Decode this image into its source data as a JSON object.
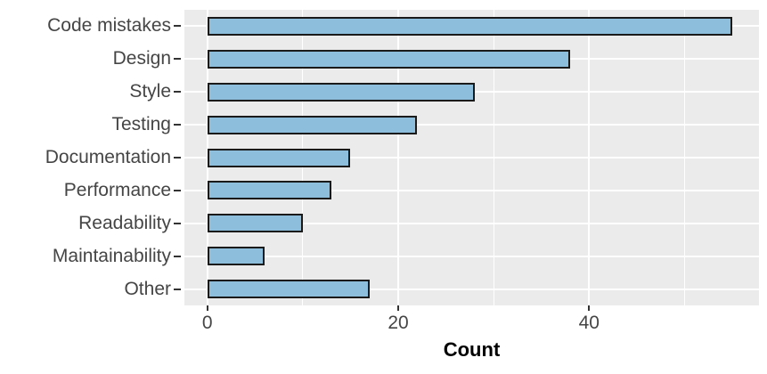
{
  "chart_data": {
    "type": "bar",
    "orientation": "horizontal",
    "title": "",
    "xlabel": "Count",
    "ylabel": "",
    "categories": [
      "Code mistakes",
      "Design",
      "Style",
      "Testing",
      "Documentation",
      "Performance",
      "Readability",
      "Maintainability",
      "Other"
    ],
    "values": [
      55,
      38,
      28,
      22,
      15,
      13,
      10,
      6,
      17
    ],
    "x_major_ticks": [
      0,
      20,
      40
    ],
    "x_minor_ticks": [
      10,
      30,
      50
    ],
    "xlim": [
      -2.4,
      57.8
    ],
    "grid": "vertical major+minor, horizontal major per category",
    "legend": "none",
    "style": {
      "bar_fill": "#8DBEDB",
      "bar_border": "#1A1A1A",
      "panel_background": "#EBEBEB",
      "gridline_color": "#FFFFFF",
      "axis_text_color": "#454545",
      "axis_title_color": "#000000",
      "tick_mark_color": "#333333",
      "figure_background": "#FFFFFF"
    }
  }
}
